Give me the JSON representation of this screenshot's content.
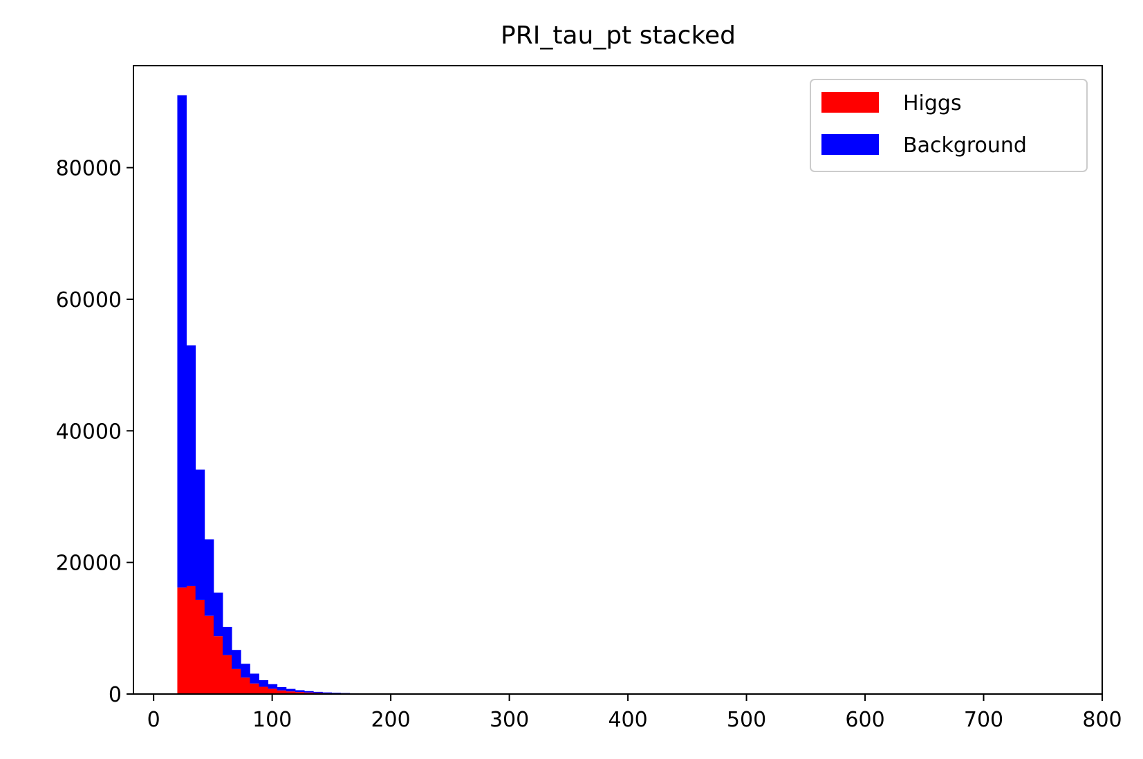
{
  "chart_data": {
    "type": "bar",
    "stacked": true,
    "title": "PRI_tau_pt stacked",
    "xlabel": "",
    "ylabel": "",
    "xlim": [
      -17,
      800
    ],
    "ylim": [
      0,
      95500
    ],
    "xticks": [
      0,
      100,
      200,
      300,
      400,
      500,
      600,
      700,
      800
    ],
    "yticks": [
      0,
      20000,
      40000,
      60000,
      80000
    ],
    "xtick_labels": [
      "0",
      "100",
      "200",
      "300",
      "400",
      "500",
      "600",
      "700",
      "800"
    ],
    "ytick_labels": [
      "0",
      "20000",
      "40000",
      "60000",
      "80000"
    ],
    "grid": false,
    "legend_position": "top-right",
    "bin_edges": [
      20,
      27.65,
      35.3,
      42.95,
      50.6,
      58.25,
      65.9,
      73.55,
      81.2,
      88.85,
      96.5,
      104.15,
      111.8,
      119.45,
      127.1,
      134.75,
      142.4,
      150.05,
      157.7,
      165.35,
      173
    ],
    "series": [
      {
        "name": "Higgs",
        "color": "#ff0000",
        "values": [
          16200,
          16400,
          14300,
          11900,
          8800,
          5900,
          3800,
          2500,
          1600,
          1100,
          800,
          550,
          400,
          300,
          230,
          170,
          130,
          100,
          80,
          60
        ]
      },
      {
        "name": "Background",
        "color": "#0000ff",
        "values": [
          74800,
          36600,
          19800,
          11600,
          6600,
          4300,
          2900,
          2100,
          1500,
          1000,
          700,
          500,
          380,
          280,
          210,
          160,
          120,
          90,
          70,
          50
        ]
      }
    ]
  }
}
